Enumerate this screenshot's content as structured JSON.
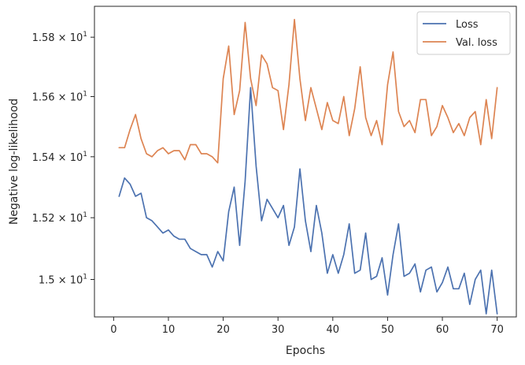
{
  "chart_data": {
    "type": "line",
    "xlabel": "Epochs",
    "ylabel": "Negative log-likelihood",
    "xlim": [
      -3.5,
      73.5
    ],
    "ylim": [
      14.88,
      15.905
    ],
    "yscale": "log",
    "grid": false,
    "legend_position": "top-right",
    "x_ticks": [
      0,
      10,
      20,
      30,
      40,
      50,
      60,
      70
    ],
    "x_tick_labels": [
      "0",
      "10",
      "20",
      "30",
      "40",
      "50",
      "60",
      "70"
    ],
    "y_ticks": [
      15.0,
      15.2,
      15.4,
      15.6,
      15.8
    ],
    "y_tick_labels": [
      {
        "mant": "1.5",
        "exp": "1"
      },
      {
        "mant": "1.52",
        "exp": "1"
      },
      {
        "mant": "1.54",
        "exp": "1"
      },
      {
        "mant": "1.56",
        "exp": "1"
      },
      {
        "mant": "1.58",
        "exp": "1"
      }
    ],
    "x": [
      1,
      2,
      3,
      4,
      5,
      6,
      7,
      8,
      9,
      10,
      11,
      12,
      13,
      14,
      15,
      16,
      17,
      18,
      19,
      20,
      21,
      22,
      23,
      24,
      25,
      26,
      27,
      28,
      29,
      30,
      31,
      32,
      33,
      34,
      35,
      36,
      37,
      38,
      39,
      40,
      41,
      42,
      43,
      44,
      45,
      46,
      47,
      48,
      49,
      50,
      51,
      52,
      53,
      54,
      55,
      56,
      57,
      58,
      59,
      60,
      61,
      62,
      63,
      64,
      65,
      66,
      67,
      68,
      69,
      70
    ],
    "series": [
      {
        "name": "Loss",
        "color": "#4c72b0",
        "values": [
          15.27,
          15.33,
          15.31,
          15.27,
          15.28,
          15.2,
          15.19,
          15.17,
          15.15,
          15.16,
          15.14,
          15.13,
          15.13,
          15.1,
          15.09,
          15.08,
          15.08,
          15.04,
          15.09,
          15.06,
          15.22,
          15.3,
          15.11,
          15.32,
          15.63,
          15.37,
          15.19,
          15.26,
          15.23,
          15.2,
          15.24,
          15.11,
          15.17,
          15.36,
          15.19,
          15.09,
          15.24,
          15.15,
          15.02,
          15.08,
          15.02,
          15.08,
          15.18,
          15.02,
          15.03,
          15.15,
          15.0,
          15.01,
          15.07,
          14.95,
          15.08,
          15.18,
          15.01,
          15.02,
          15.05,
          14.96,
          15.03,
          15.04,
          14.96,
          14.99,
          15.04,
          14.97,
          14.97,
          15.02,
          14.92,
          15.0,
          15.03,
          14.89,
          15.03,
          14.89
        ]
      },
      {
        "name": "Val. loss",
        "color": "#dd8452",
        "values": [
          15.43,
          15.43,
          15.49,
          15.54,
          15.46,
          15.41,
          15.4,
          15.42,
          15.43,
          15.41,
          15.42,
          15.42,
          15.39,
          15.44,
          15.44,
          15.41,
          15.41,
          15.4,
          15.38,
          15.66,
          15.77,
          15.54,
          15.62,
          15.85,
          15.66,
          15.57,
          15.74,
          15.71,
          15.63,
          15.62,
          15.49,
          15.64,
          15.86,
          15.66,
          15.52,
          15.63,
          15.56,
          15.49,
          15.58,
          15.52,
          15.51,
          15.6,
          15.47,
          15.56,
          15.7,
          15.53,
          15.47,
          15.52,
          15.44,
          15.64,
          15.75,
          15.55,
          15.5,
          15.52,
          15.48,
          15.59,
          15.59,
          15.47,
          15.5,
          15.57,
          15.53,
          15.48,
          15.51,
          15.47,
          15.53,
          15.55,
          15.44,
          15.59,
          15.46,
          15.63
        ]
      }
    ]
  }
}
